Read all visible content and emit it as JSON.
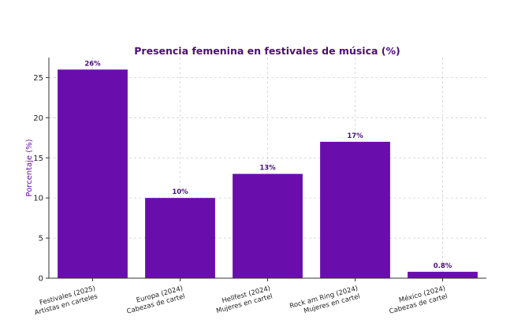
{
  "chart_data": {
    "type": "bar",
    "title": "Presencia femenina en festivales de música (%)",
    "xlabel": "",
    "ylabel": "Porcentaje (%)",
    "ylim": [
      0,
      27.5
    ],
    "yticks": [
      0,
      5,
      10,
      15,
      20,
      25
    ],
    "grid": true,
    "bar_color": "#6a0dad",
    "categories": [
      [
        "Festivales (2025)",
        "Artistas en carteles"
      ],
      [
        "Europa (2024)",
        "Cabezas de cartel"
      ],
      [
        "Hellfest (2024)",
        "Mujeres en cartel"
      ],
      [
        "Rock am Ring (2024)",
        "Mujeres en cartel"
      ],
      [
        "México (2024)",
        "Cabezas de cartel"
      ]
    ],
    "values": [
      26,
      10,
      13,
      17,
      0.8
    ],
    "value_labels": [
      "26%",
      "10%",
      "13%",
      "17%",
      "0.8%"
    ]
  }
}
